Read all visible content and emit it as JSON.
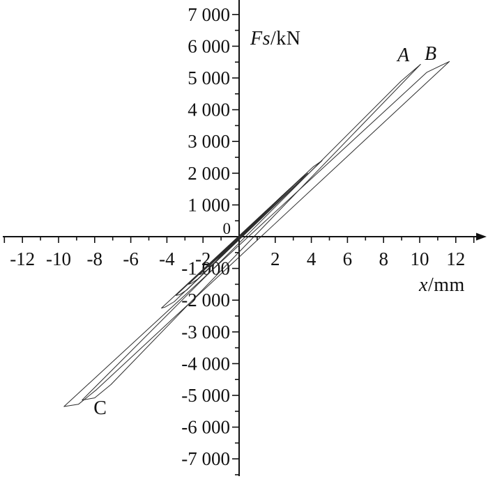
{
  "figure": {
    "ylabel_italic": "Fs",
    "ylabel_rest": "/kN",
    "xlabel_italic": "x",
    "xlabel_rest": "/mm"
  },
  "chart_data": {
    "type": "line",
    "title": "",
    "subtitle": "",
    "xlabel": "x/mm",
    "ylabel": "Fs/kN",
    "legend": [],
    "grid": false,
    "xlim": [
      -13.2,
      13.7
    ],
    "ylim": [
      -7500,
      7500
    ],
    "origin_label": "0",
    "axis_color": "#111111",
    "line_color": "#2b2b2b",
    "x_ticks": [
      {
        "v": -12,
        "label": "-12"
      },
      {
        "v": -10,
        "label": "-10"
      },
      {
        "v": -8,
        "label": "-8"
      },
      {
        "v": -6,
        "label": "-6"
      },
      {
        "v": -4,
        "label": "-4"
      },
      {
        "v": -2,
        "label": "-2"
      },
      {
        "v": 2,
        "label": "2"
      },
      {
        "v": 4,
        "label": "4"
      },
      {
        "v": 6,
        "label": "6"
      },
      {
        "v": 8,
        "label": "8"
      },
      {
        "v": 10,
        "label": "10"
      },
      {
        "v": 12,
        "label": "12"
      }
    ],
    "x_minor_ticks": [
      -13,
      -11,
      -9,
      -7,
      -5,
      -3,
      -1,
      1,
      3,
      5,
      7,
      9,
      11,
      13
    ],
    "y_ticks": [
      {
        "v": 7000,
        "label": "7 000"
      },
      {
        "v": 6000,
        "label": "6 000"
      },
      {
        "v": 5000,
        "label": "5 000"
      },
      {
        "v": 4000,
        "label": "4 000"
      },
      {
        "v": 3000,
        "label": "3 000"
      },
      {
        "v": 2000,
        "label": "2 000"
      },
      {
        "v": 1000,
        "label": "1 000"
      },
      {
        "v": -1000,
        "label": "-1 000"
      },
      {
        "v": -2000,
        "label": "-2 000"
      },
      {
        "v": -3000,
        "label": "-3 000"
      },
      {
        "v": -4000,
        "label": "-4 000"
      },
      {
        "v": -5000,
        "label": "-5 000"
      },
      {
        "v": -6000,
        "label": "-6 000"
      },
      {
        "v": -7000,
        "label": "-7 000"
      }
    ],
    "y_minor_ticks": [
      -7500,
      -6500,
      -5500,
      -4500,
      -3500,
      -2500,
      -1500,
      -500,
      500,
      1500,
      2500,
      3500,
      4500,
      5500,
      6500
    ],
    "annotations": [
      {
        "text": "A",
        "x_mm": 9.1,
        "f_kn": 5530,
        "italic": true
      },
      {
        "text": "B",
        "x_mm": 10.6,
        "f_kn": 5570,
        "italic": true
      },
      {
        "text": "C",
        "x_mm": -7.7,
        "f_kn": -5590,
        "italic": false
      }
    ],
    "loops": [
      {
        "name": "cycle-B",
        "tip_pos": [
          11.65,
          5520
        ],
        "tip_neg": [
          -9.7,
          -5350
        ],
        "points": [
          [
            -9.7,
            -5350
          ],
          [
            10.4,
            5180
          ],
          [
            11.65,
            5520
          ],
          [
            -7.9,
            -4820
          ],
          [
            -8.9,
            -5280
          ]
        ]
      },
      {
        "name": "cycle-A",
        "tip_pos": [
          10.05,
          5430
        ],
        "tip_neg": [
          -8.7,
          -5150
        ],
        "points": [
          [
            -8.7,
            -5150
          ],
          [
            8.95,
            4890
          ],
          [
            10.05,
            5430
          ],
          [
            -7.1,
            -4660
          ],
          [
            -8.0,
            -5080
          ]
        ]
      },
      {
        "name": "cycle-m5",
        "tip_pos": [
          4.6,
          2400
        ],
        "tip_neg": [
          -4.3,
          -2250
        ],
        "points": [
          [
            -4.3,
            -2250
          ],
          [
            4.1,
            2200
          ],
          [
            4.6,
            2400
          ],
          [
            -3.6,
            -2050
          ],
          [
            -4.1,
            -2220
          ]
        ]
      },
      {
        "name": "cycle-m4",
        "tip_pos": [
          3.8,
          2000
        ],
        "tip_neg": [
          -3.5,
          -1850
        ],
        "points": [
          [
            -3.5,
            -1850
          ],
          [
            3.35,
            1790
          ],
          [
            3.8,
            2000
          ],
          [
            -2.9,
            -1680
          ],
          [
            -3.3,
            -1830
          ]
        ]
      },
      {
        "name": "cycle-m3",
        "tip_pos": [
          3.0,
          1600
        ],
        "tip_neg": [
          -2.8,
          -1500
        ],
        "points": [
          [
            -2.8,
            -1500
          ],
          [
            2.65,
            1430
          ],
          [
            3.0,
            1600
          ],
          [
            -2.3,
            -1340
          ],
          [
            -2.65,
            -1470
          ]
        ]
      },
      {
        "name": "cycle-m2",
        "tip_pos": [
          2.4,
          1300
        ],
        "tip_neg": [
          -2.2,
          -1200
        ],
        "points": [
          [
            -2.2,
            -1200
          ],
          [
            2.1,
            1130
          ],
          [
            2.4,
            1300
          ],
          [
            -1.8,
            -1060
          ],
          [
            -2.1,
            -1180
          ]
        ]
      },
      {
        "name": "cycle-m1",
        "tip_pos": [
          1.9,
          1000
        ],
        "tip_neg": [
          -1.7,
          -950
        ],
        "points": [
          [
            -1.7,
            -950
          ],
          [
            1.65,
            880
          ],
          [
            1.9,
            1000
          ],
          [
            -1.35,
            -820
          ],
          [
            -1.6,
            -930
          ]
        ]
      },
      {
        "name": "cycle-s4",
        "tip_pos": [
          1.5,
          800
        ],
        "tip_neg": [
          -1.4,
          -750
        ],
        "points": [
          [
            -1.4,
            -750
          ],
          [
            1.3,
            690
          ],
          [
            1.5,
            800
          ],
          [
            -1.1,
            -640
          ],
          [
            -1.3,
            -730
          ]
        ]
      },
      {
        "name": "cycle-s3",
        "tip_pos": [
          1.15,
          620
        ],
        "tip_neg": [
          -1.05,
          -580
        ],
        "points": [
          [
            -1.05,
            -580
          ],
          [
            1.0,
            530
          ],
          [
            1.15,
            620
          ],
          [
            -0.85,
            -490
          ],
          [
            -1.0,
            -570
          ]
        ]
      },
      {
        "name": "cycle-s2",
        "tip_pos": [
          0.85,
          460
        ],
        "tip_neg": [
          -0.8,
          -430
        ],
        "points": [
          [
            -0.8,
            -430
          ],
          [
            0.75,
            390
          ],
          [
            0.85,
            460
          ],
          [
            -0.6,
            -360
          ],
          [
            -0.75,
            -420
          ]
        ]
      },
      {
        "name": "cycle-s1",
        "tip_pos": [
          0.6,
          320
        ],
        "tip_neg": [
          -0.55,
          -300
        ],
        "points": [
          [
            -0.55,
            -300
          ],
          [
            0.5,
            270
          ],
          [
            0.6,
            320
          ],
          [
            -0.42,
            -250
          ],
          [
            -0.52,
            -295
          ]
        ]
      },
      {
        "name": "cycle-s0",
        "tip_pos": [
          0.35,
          190
        ],
        "tip_neg": [
          -0.35,
          -190
        ],
        "points": [
          [
            -0.35,
            -190
          ],
          [
            0.3,
            165
          ],
          [
            0.35,
            190
          ],
          [
            -0.25,
            -150
          ],
          [
            -0.33,
            -185
          ]
        ]
      }
    ]
  }
}
